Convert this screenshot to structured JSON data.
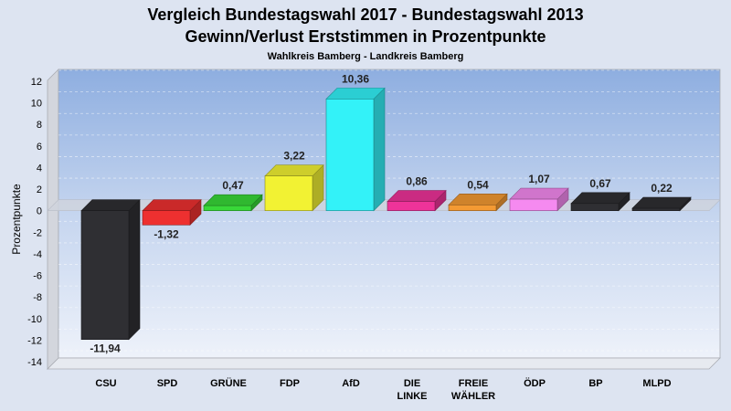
{
  "chart_data": {
    "type": "bar",
    "title_line1": "Vergleich Bundestagswahl 2017 - Bundestagswahl 2013",
    "title_line2": "Gewinn/Verlust Erststimmen in Prozentpunkte",
    "subtitle": "Wahlkreis Bamberg - Landkreis Bamberg",
    "xlabel": "",
    "ylabel": "Prozentpunkte",
    "ylim": [
      -14,
      12
    ],
    "yticks": [
      12,
      10,
      8,
      6,
      4,
      2,
      0,
      -2,
      -4,
      -6,
      -8,
      -10,
      -12,
      -14
    ],
    "grid": true,
    "categories": [
      [
        "CSU"
      ],
      [
        "SPD"
      ],
      [
        "GRÜNE"
      ],
      [
        "FDP"
      ],
      [
        "AfD"
      ],
      [
        "DIE",
        "LINKE"
      ],
      [
        "FREIE",
        "WÄHLER"
      ],
      [
        "ÖDP"
      ],
      [
        "BP"
      ],
      [
        "MLPD"
      ]
    ],
    "values": [
      -11.94,
      -1.32,
      0.47,
      3.22,
      10.36,
      0.86,
      0.54,
      1.07,
      0.67,
      0.22
    ],
    "labels": [
      "-11,94",
      "-1,32",
      "0,47",
      "3,22",
      "10,36",
      "0,86",
      "0,54",
      "1,07",
      "0,67",
      "0,22"
    ],
    "colors": [
      "#2f2f33",
      "#ee3030",
      "#38d838",
      "#f2f233",
      "#33f2f8",
      "#ee3399",
      "#f49a33",
      "#f58af0",
      "#2f2f33",
      "#2f2f33"
    ]
  }
}
